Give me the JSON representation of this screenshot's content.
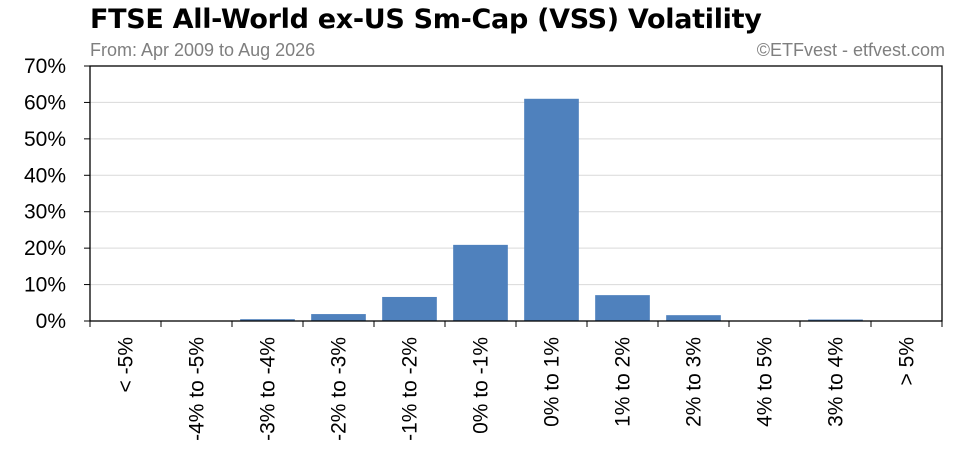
{
  "header": {
    "title": "FTSE All-World ex-US Sm-Cap (VSS) Volatility",
    "subtitle": "From: Apr 2009 to Aug 2026",
    "credit": "©ETFvest - etfvest.com"
  },
  "colors": {
    "bar": "#4f81bd",
    "grid": "#d9d9d9",
    "axis": "#000000"
  },
  "chart_data": {
    "type": "bar",
    "title": "FTSE All-World ex-US Sm-Cap (VSS) Volatility",
    "subtitle": "From: Apr 2009 to Aug 2026",
    "categories": [
      "< -5%",
      "-4% to -5%",
      "-3% to -4%",
      "-2% to -3%",
      "-1% to -2%",
      "0% to -1%",
      "0% to 1%",
      "1% to 2%",
      "2% to 3%",
      "4% to 5%",
      "3% to 4%",
      "> 5%"
    ],
    "values": [
      0.1,
      0.1,
      0.5,
      1.9,
      6.6,
      20.9,
      61.0,
      7.1,
      1.6,
      0.1,
      0.4,
      0.1
    ],
    "yticks": [
      "0%",
      "10%",
      "20%",
      "30%",
      "40%",
      "50%",
      "60%",
      "70%"
    ],
    "ylim": [
      0,
      70
    ],
    "ytick_step": 10,
    "grid": true,
    "legend": "none"
  }
}
